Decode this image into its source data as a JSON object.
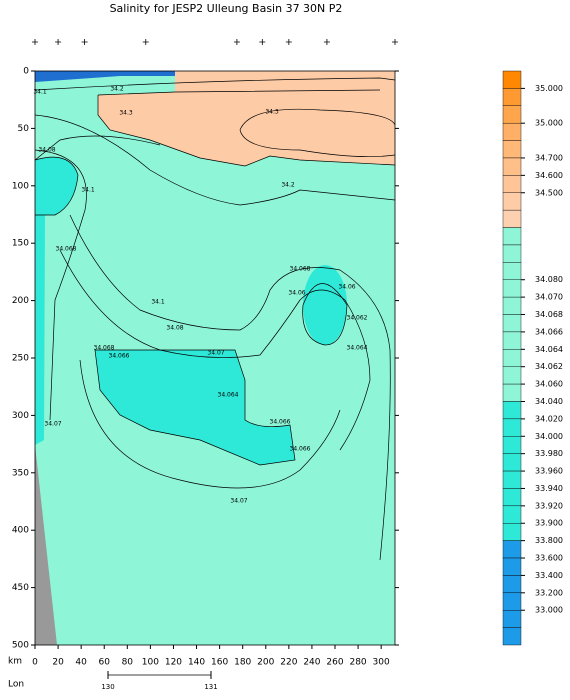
{
  "chart_data": {
    "type": "contour",
    "title": "Salinity for JESP2 Ulleung Basin 37 30N P2",
    "xlabel": "km",
    "xlim": [
      0,
      312
    ],
    "xticks": [
      0,
      20,
      40,
      60,
      80,
      100,
      120,
      140,
      160,
      180,
      200,
      220,
      240,
      260,
      280,
      300
    ],
    "ylim": [
      0,
      500
    ],
    "yticks": [
      0,
      50,
      100,
      150,
      200,
      250,
      300,
      350,
      400,
      450,
      500
    ],
    "stations": [
      0,
      20,
      43,
      96,
      175,
      197,
      220,
      253,
      312
    ],
    "lon_label": "Lon",
    "lon_ticks": [
      130,
      131
    ],
    "contour_labels": [
      34.1,
      34.2,
      34.3,
      34.3,
      34.2,
      34.08,
      34.1,
      34.068,
      34.068,
      34.06,
      34.06,
      34.1,
      34.08,
      34.062,
      34.068,
      34.066,
      34.07,
      34.064,
      34.064,
      34.066,
      34.066,
      34.07,
      34.07
    ],
    "colorbar": {
      "colors": [
        "#ff8800",
        "#ff9a33",
        "#ffa64d",
        "#ffb066",
        "#ffb877",
        "#ffbf88",
        "#ffc599",
        "#ffcca8",
        "#fdd0b0",
        "#8ef5d7",
        "#8ef5d7",
        "#8ef5d7",
        "#8ef5d7",
        "#8ef5d7",
        "#8ef5d7",
        "#8ef5d7",
        "#8ef5d7",
        "#8ef5d7",
        "#8ef5d7",
        "#2ee8d8",
        "#2ee8d8",
        "#2ee8d8",
        "#2ee8d8",
        "#2ee8d8",
        "#2ee8d8",
        "#2ee8d8",
        "#2ee8d8",
        "#1e9be8",
        "#1e9be8",
        "#1e9be8",
        "#1e9be8",
        "#1e9be8",
        "#1e9be8"
      ],
      "ticks": [
        null,
        {
          "value": 35,
          "label": "35.000"
        },
        null,
        {
          "value": 35,
          "label": "35.000"
        },
        null,
        {
          "value": 34.7,
          "label": "34.700"
        },
        {
          "value": 34.6,
          "label": "34.600"
        },
        {
          "value": 34.5,
          "label": "34.500"
        },
        null,
        null,
        null,
        null,
        {
          "value": 34.08,
          "label": "34.080"
        },
        {
          "value": 34.07,
          "label": "34.070"
        },
        {
          "value": 34.068,
          "label": "34.068"
        },
        {
          "value": 34.066,
          "label": "34.066"
        },
        {
          "value": 34.064,
          "label": "34.064"
        },
        {
          "value": 34.062,
          "label": "34.062"
        },
        {
          "value": 34.06,
          "label": "34.060"
        },
        {
          "value": 34.04,
          "label": "34.040"
        },
        {
          "value": 34.02,
          "label": "34.020"
        },
        {
          "value": 34,
          "label": "34.000"
        },
        {
          "value": 33.98,
          "label": "33.980"
        },
        {
          "value": 33.96,
          "label": "33.960"
        },
        {
          "value": 33.94,
          "label": "33.940"
        },
        {
          "value": 33.92,
          "label": "33.920"
        },
        {
          "value": 33.9,
          "label": "33.900"
        },
        {
          "value": 33.8,
          "label": "33.800"
        },
        {
          "value": 33.6,
          "label": "33.600"
        },
        {
          "value": 33.4,
          "label": "33.400"
        },
        {
          "value": 33.2,
          "label": "33.200"
        },
        {
          "value": 33,
          "label": "33.000"
        },
        null,
        null
      ]
    }
  }
}
